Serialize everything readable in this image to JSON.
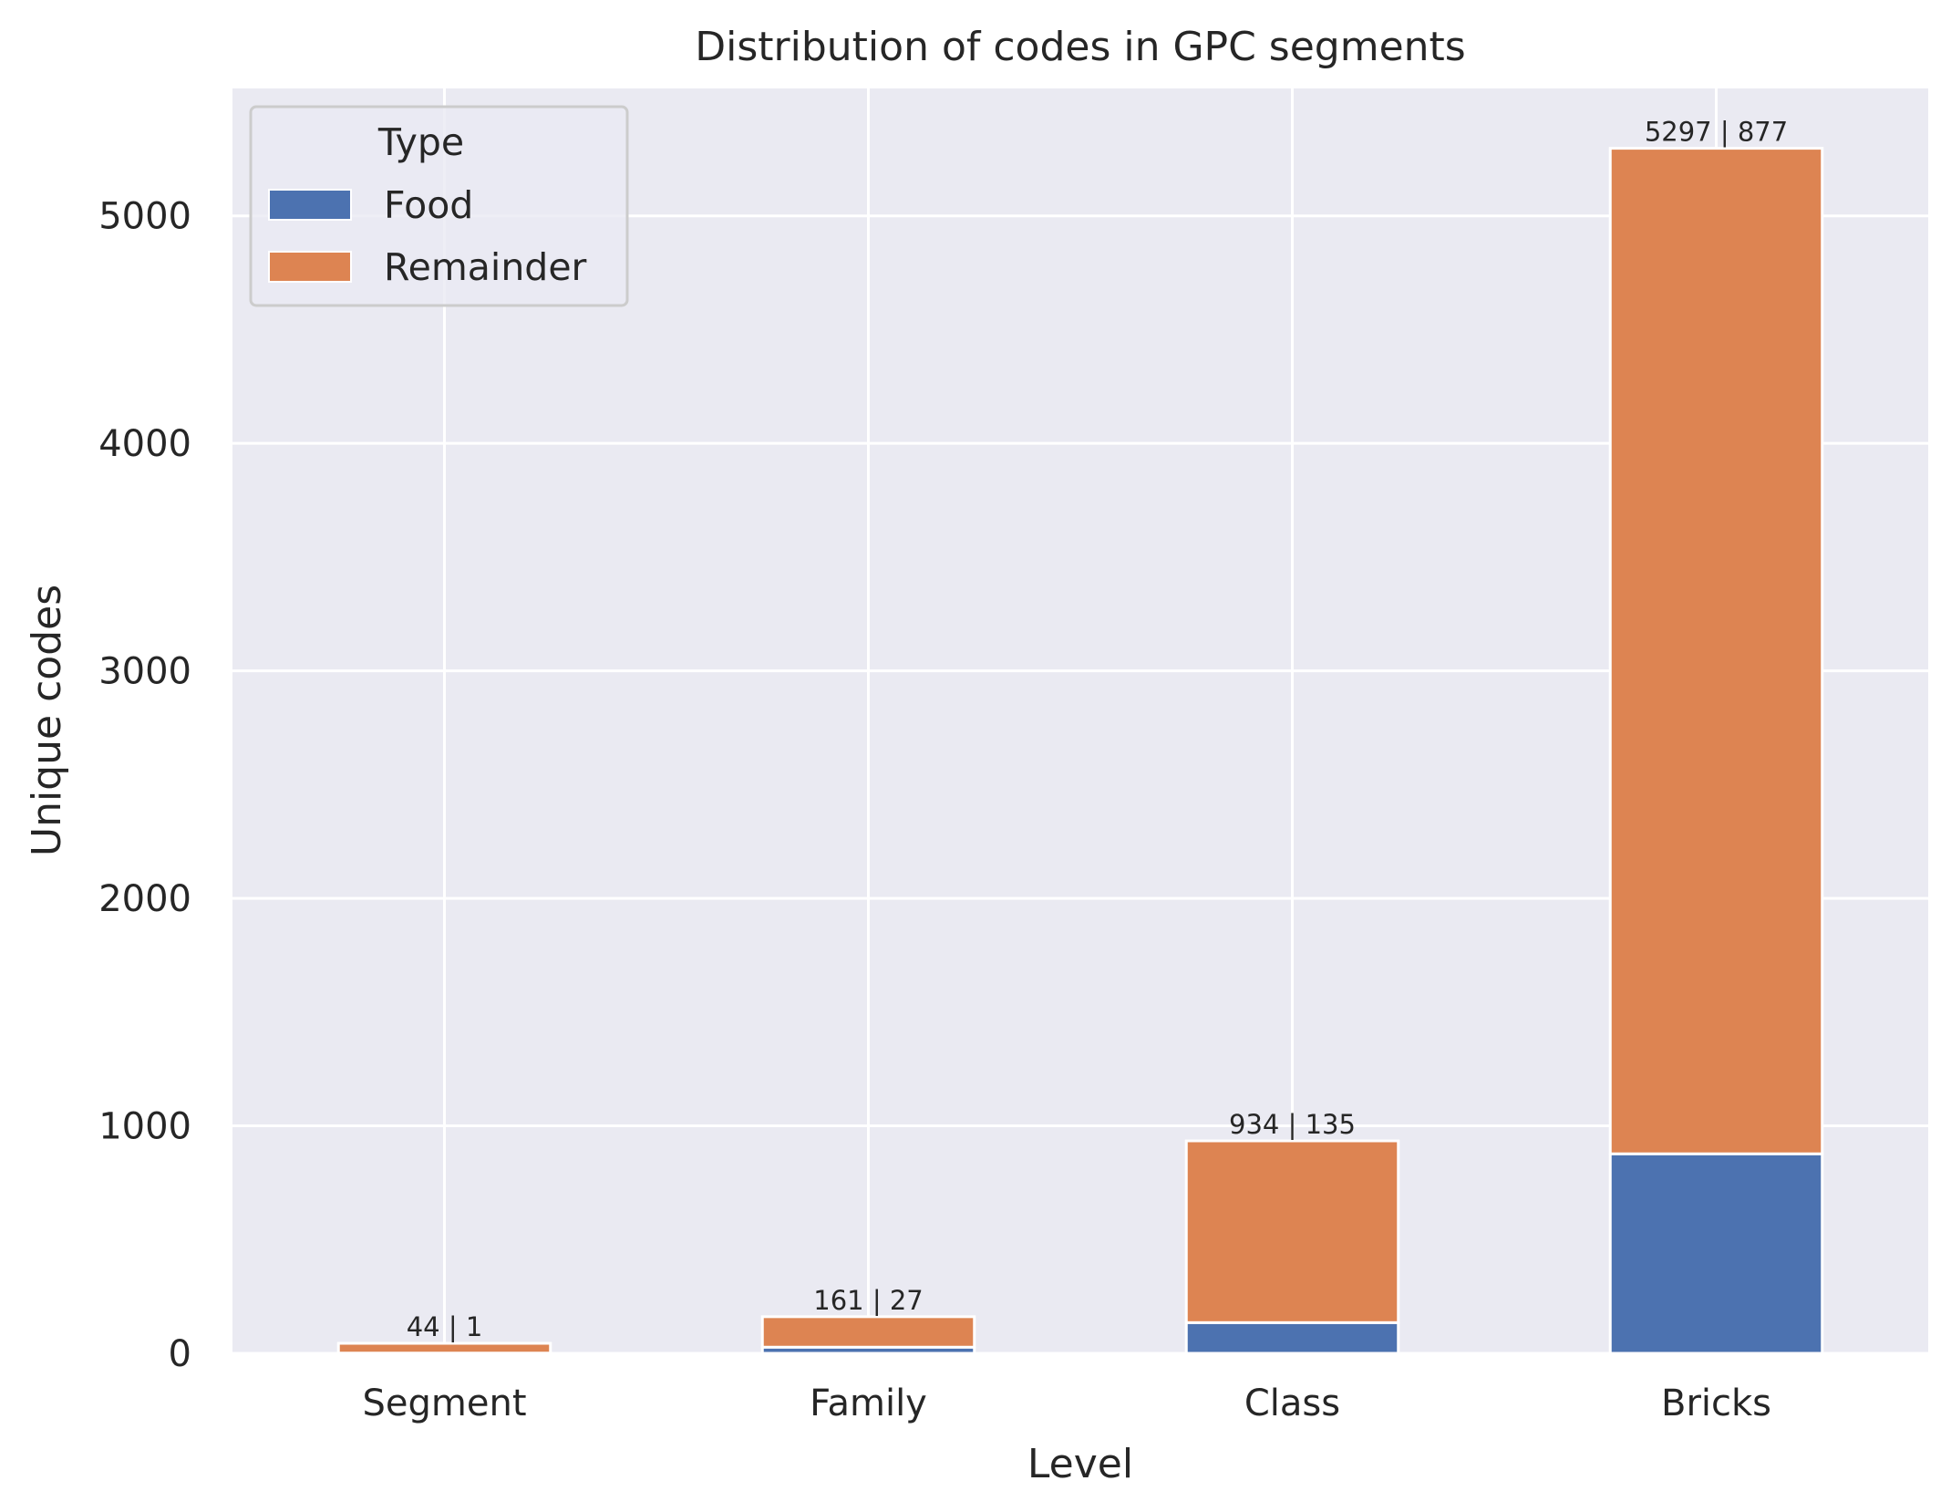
{
  "chart_data": {
    "type": "bar",
    "stacked": true,
    "title": "Distribution of codes in GPC segments",
    "xlabel": "Level",
    "ylabel": "Unique codes",
    "categories": [
      "Segment",
      "Family",
      "Class",
      "Bricks"
    ],
    "series": [
      {
        "name": "Food",
        "values": [
          1,
          27,
          135,
          877
        ],
        "color": "#4c72b0"
      },
      {
        "name": "Remainder",
        "values": [
          43,
          134,
          799,
          4420
        ],
        "color": "#dd8452"
      }
    ],
    "data_labels": [
      "44 | 1",
      "161 | 27",
      "934 | 135",
      "5297 | 877"
    ],
    "ylim": [
      0,
      5560
    ],
    "yticks": [
      0,
      1000,
      2000,
      3000,
      4000,
      5000
    ],
    "grid": true,
    "background": "#eaeaf2",
    "legend": {
      "title": "Type",
      "position": "top-left"
    }
  }
}
